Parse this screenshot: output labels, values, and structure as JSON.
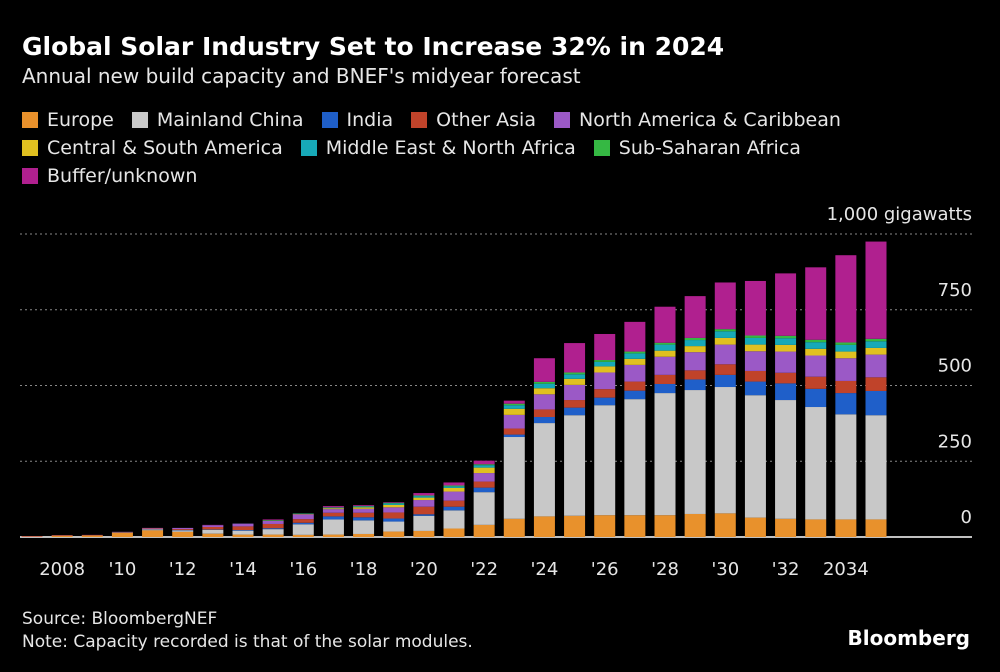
{
  "chart_data": {
    "type": "stacked-bar",
    "title": "Global Solar Industry Set to Increase 32% in 2024",
    "subtitle": "Annual new build capacity and BNEF's midyear forecast",
    "source": "Source: BloombergNEF",
    "note": "Note: Capacity recorded is that of the solar modules.",
    "brand": "Bloomberg",
    "categories": [
      null,
      "2008",
      null,
      "'10",
      null,
      "'12",
      null,
      "'14",
      null,
      "'16",
      null,
      "'18",
      null,
      "'20",
      null,
      "'22",
      null,
      "'24",
      null,
      "'26",
      null,
      "'28",
      null,
      "'30",
      null,
      "'32",
      null,
      "2034",
      null
    ],
    "series": [
      {
        "name": "Europe",
        "color": "#e8912c",
        "values": [
          2,
          5,
          6,
          14,
          22,
          17,
          11,
          8,
          8,
          7,
          8,
          10,
          18,
          20,
          28,
          40,
          60,
          68,
          70,
          72,
          72,
          72,
          76,
          78,
          64,
          60,
          58,
          58,
          58
        ]
      },
      {
        "name": "Mainland China",
        "color": "#c8c8c8",
        "values": [
          0,
          0,
          0,
          1,
          3,
          5,
          13,
          13,
          18,
          35,
          50,
          45,
          33,
          50,
          60,
          108,
          270,
          308,
          332,
          363,
          383,
          403,
          409,
          417,
          404,
          392,
          371,
          347,
          344
        ]
      },
      {
        "name": "India",
        "color": "#1f5fc9",
        "values": [
          0,
          0,
          0,
          0,
          1,
          1,
          1,
          2,
          3,
          5,
          10,
          10,
          10,
          5,
          12,
          15,
          8,
          20,
          25,
          25,
          28,
          30,
          35,
          40,
          45,
          55,
          60,
          70,
          80
        ]
      },
      {
        "name": "Other Asia",
        "color": "#c0432a",
        "values": [
          0,
          0,
          0,
          1,
          2,
          3,
          8,
          12,
          14,
          12,
          12,
          15,
          20,
          25,
          20,
          20,
          20,
          25,
          25,
          28,
          30,
          30,
          30,
          35,
          35,
          35,
          40,
          40,
          45
        ]
      },
      {
        "name": "North America & Caribbean",
        "color": "#9b59c6",
        "values": [
          0,
          0,
          0,
          1,
          2,
          4,
          6,
          8,
          10,
          16,
          12,
          13,
          17,
          22,
          30,
          28,
          45,
          50,
          50,
          55,
          55,
          60,
          60,
          65,
          65,
          70,
          70,
          75,
          75
        ]
      },
      {
        "name": "Central & South America",
        "color": "#e0c020",
        "values": [
          0,
          0,
          0,
          0,
          0,
          0,
          0,
          0,
          1,
          1,
          3,
          5,
          8,
          8,
          12,
          18,
          20,
          20,
          20,
          20,
          20,
          20,
          20,
          22,
          22,
          22,
          22,
          22,
          22
        ]
      },
      {
        "name": "Middle East & North Africa",
        "color": "#17a9b8",
        "values": [
          0,
          0,
          0,
          0,
          0,
          0,
          0,
          1,
          1,
          1,
          2,
          3,
          5,
          5,
          5,
          8,
          12,
          15,
          15,
          15,
          18,
          20,
          20,
          22,
          22,
          22,
          22,
          22,
          22
        ]
      },
      {
        "name": "Sub-Saharan Africa",
        "color": "#35b843",
        "values": [
          0,
          0,
          0,
          0,
          0,
          0,
          0,
          0,
          1,
          1,
          1,
          1,
          2,
          2,
          3,
          3,
          5,
          6,
          6,
          6,
          6,
          6,
          7,
          7,
          8,
          8,
          8,
          8,
          8
        ]
      },
      {
        "name": "Buffer/unknown",
        "color": "#b0208f",
        "values": [
          1,
          1,
          1,
          0,
          0,
          0,
          1,
          1,
          2,
          0,
          4,
          3,
          2,
          8,
          10,
          12,
          10,
          78,
          97,
          86,
          98,
          119,
          138,
          154,
          180,
          206,
          239,
          288,
          321
        ]
      }
    ],
    "ylim": [
      0,
      1000
    ],
    "yticks": [
      0,
      250,
      500,
      750,
      {
        "value": 1000,
        "label": "1,000 gigawatts"
      }
    ],
    "grid": true
  }
}
